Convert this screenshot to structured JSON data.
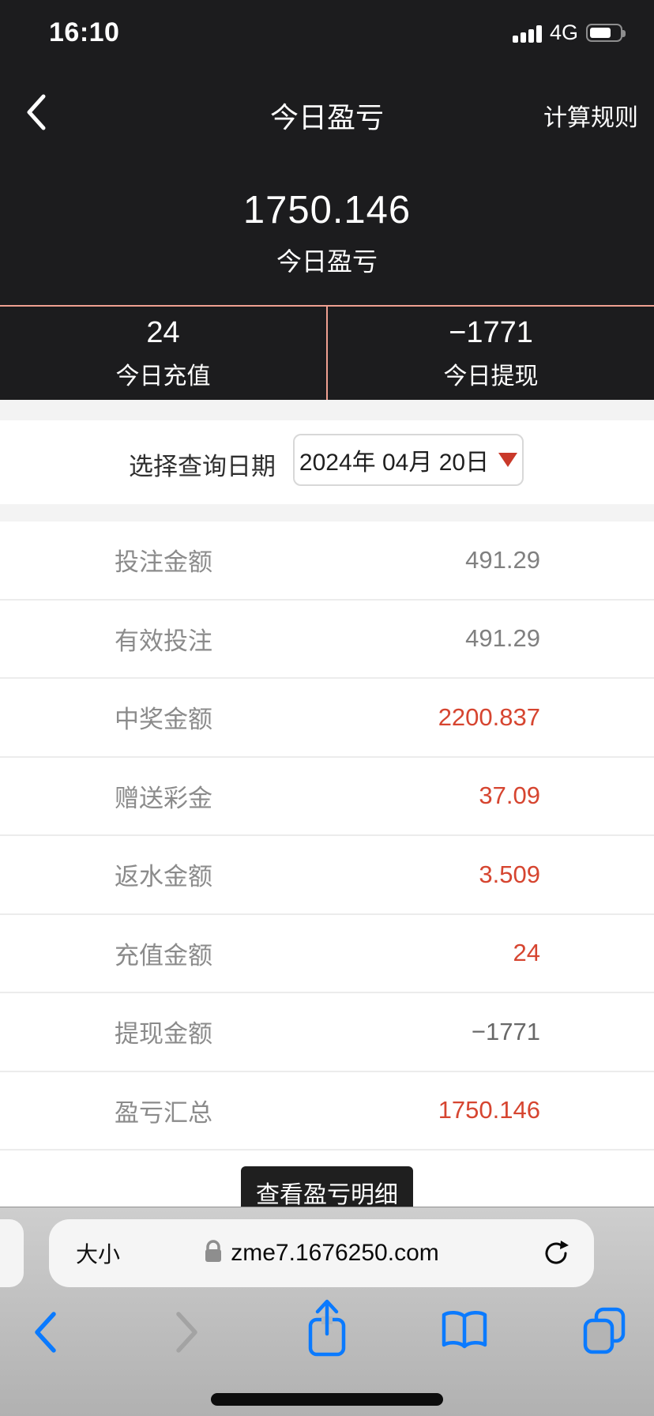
{
  "status_bar": {
    "time": "16:10",
    "network": "4G"
  },
  "header": {
    "title": "今日盈亏",
    "rules_link": "计算规则"
  },
  "summary": {
    "amount": "1750.146",
    "label": "今日盈亏"
  },
  "stats": {
    "left": {
      "value": "24",
      "label": "今日充值"
    },
    "right": {
      "value": "−1771",
      "label": "今日提现"
    }
  },
  "date_picker": {
    "label": "选择查询日期",
    "value": "2024年 04月 20日"
  },
  "rows": [
    {
      "label": "投注金额",
      "value": "491.29",
      "tone": "gray"
    },
    {
      "label": "有效投注",
      "value": "491.29",
      "tone": "gray"
    },
    {
      "label": "中奖金额",
      "value": "2200.837",
      "tone": "red"
    },
    {
      "label": "赠送彩金",
      "value": "37.09",
      "tone": "red"
    },
    {
      "label": "返水金额",
      "value": "3.509",
      "tone": "red"
    },
    {
      "label": "充值金额",
      "value": "24",
      "tone": "red"
    },
    {
      "label": "提现金额",
      "value": "−1771",
      "tone": "dark"
    },
    {
      "label": "盈亏汇总",
      "value": "1750.146",
      "tone": "red"
    }
  ],
  "detail_button": {
    "label": "查看盈亏明细"
  },
  "browser": {
    "text_size_label": "大小",
    "url": "zme7.1676250.com"
  },
  "colors": {
    "hero_bg": "#1c1c1e",
    "divider_salmon": "#efa091",
    "value_red": "#d64530",
    "caret_red": "#c9392a",
    "chrome_top": "#cecece",
    "chrome_bottom": "#b1b1b1",
    "link_blue": "#0a7aff"
  }
}
